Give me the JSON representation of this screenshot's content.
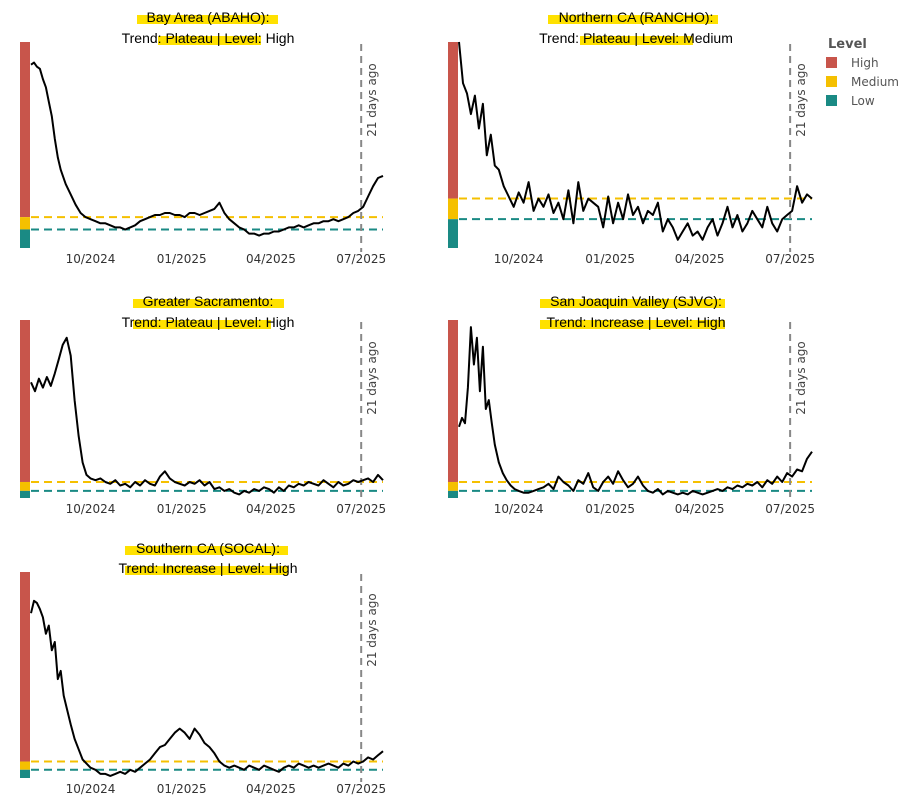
{
  "legend": {
    "title": "Level",
    "items": [
      {
        "label": "High",
        "color": "#c8554b"
      },
      {
        "label": "Medium",
        "color": "#f5c000"
      },
      {
        "label": "Low",
        "color": "#1a8a84"
      }
    ]
  },
  "highlight_color": "#ffe100",
  "medium_line_color": "#f5c000",
  "low_line_color": "#1a8a84",
  "marker_label": "21 days ago",
  "chart_data": [
    {
      "type": "line",
      "title_line1": "Bay Area (ABAHO):",
      "title_line2": "Trend: Plateau  | Level: High",
      "x_tick_labels": [
        "10/2024",
        "01/2025",
        "04/2025",
        "07/2025"
      ],
      "x_ticks_days": [
        60,
        152,
        242,
        333
      ],
      "x_range_days": [
        0,
        355
      ],
      "marker_day": 333,
      "y_range": [
        0,
        100
      ],
      "y_axis_bands": {
        "high": [
          15,
          100
        ],
        "medium": [
          9,
          15
        ],
        "low": [
          0,
          9
        ]
      },
      "medium_threshold": 15,
      "low_threshold": 9,
      "x": [
        0,
        3,
        6,
        9,
        12,
        15,
        18,
        21,
        24,
        27,
        30,
        35,
        40,
        45,
        50,
        55,
        60,
        65,
        70,
        75,
        80,
        85,
        90,
        95,
        100,
        105,
        110,
        115,
        120,
        125,
        130,
        135,
        140,
        145,
        150,
        155,
        160,
        165,
        170,
        175,
        180,
        185,
        190,
        195,
        200,
        205,
        210,
        215,
        220,
        225,
        230,
        235,
        240,
        245,
        250,
        255,
        260,
        265,
        270,
        275,
        280,
        285,
        290,
        295,
        300,
        305,
        310,
        315,
        320,
        325,
        330,
        335,
        340,
        345,
        350,
        355
      ],
      "y": [
        89,
        90,
        88,
        87,
        82,
        78,
        71,
        64,
        53,
        44,
        38,
        31,
        26,
        21,
        17,
        15,
        14,
        13,
        12,
        12,
        11,
        10,
        10,
        9,
        10,
        11,
        13,
        14,
        15,
        16,
        16,
        17,
        17,
        16,
        16,
        15,
        17,
        17,
        16,
        17,
        18,
        19,
        22,
        17,
        14,
        12,
        10,
        9,
        7,
        7,
        6,
        7,
        7,
        8,
        8,
        9,
        10,
        10,
        11,
        10,
        11,
        12,
        12,
        13,
        13,
        14,
        13,
        14,
        15,
        17,
        18,
        20,
        25,
        30,
        34,
        35
      ]
    },
    {
      "type": "line",
      "title_line1": "Northern CA (RANCHO):",
      "title_line2": "Trend: Plateau  | Level: Medium",
      "x_tick_labels": [
        "10/2024",
        "01/2025",
        "04/2025",
        "07/2025"
      ],
      "x_ticks_days": [
        60,
        152,
        242,
        333
      ],
      "x_range_days": [
        0,
        355
      ],
      "marker_day": 333,
      "y_range": [
        0,
        100
      ],
      "y_axis_bands": {
        "high": [
          24,
          100
        ],
        "medium": [
          14,
          24
        ],
        "low": [
          0,
          14
        ]
      },
      "medium_threshold": 24,
      "low_threshold": 14,
      "x": [
        0,
        4,
        8,
        12,
        16,
        20,
        24,
        28,
        32,
        36,
        40,
        45,
        50,
        55,
        60,
        65,
        70,
        75,
        80,
        85,
        90,
        95,
        100,
        105,
        110,
        115,
        120,
        125,
        130,
        135,
        140,
        145,
        150,
        155,
        160,
        165,
        170,
        175,
        180,
        185,
        190,
        195,
        200,
        205,
        210,
        215,
        220,
        225,
        230,
        235,
        240,
        245,
        250,
        255,
        260,
        265,
        270,
        275,
        280,
        285,
        290,
        295,
        300,
        305,
        310,
        315,
        320,
        325,
        330,
        335,
        340,
        345,
        350,
        355
      ],
      "y": [
        100,
        80,
        75,
        65,
        74,
        58,
        70,
        45,
        55,
        40,
        38,
        30,
        25,
        20,
        27,
        22,
        32,
        18,
        24,
        20,
        26,
        17,
        22,
        14,
        28,
        12,
        32,
        18,
        24,
        22,
        20,
        10,
        25,
        12,
        22,
        14,
        26,
        16,
        20,
        12,
        18,
        16,
        22,
        8,
        14,
        10,
        4,
        8,
        12,
        6,
        8,
        4,
        10,
        14,
        6,
        12,
        20,
        10,
        16,
        8,
        12,
        18,
        14,
        10,
        20,
        12,
        8,
        14,
        16,
        18,
        30,
        22,
        26,
        24
      ]
    },
    {
      "type": "line",
      "title_line1": "Greater Sacramento:",
      "title_line2": "Trend: Plateau  | Level: High",
      "x_tick_labels": [
        "10/2024",
        "01/2025",
        "04/2025",
        "07/2025"
      ],
      "x_ticks_days": [
        60,
        152,
        242,
        333
      ],
      "x_range_days": [
        0,
        355
      ],
      "marker_day": 333,
      "y_range": [
        0,
        100
      ],
      "y_axis_bands": {
        "high": [
          9,
          100
        ],
        "medium": [
          4,
          9
        ],
        "low": [
          0,
          4
        ]
      },
      "medium_threshold": 9,
      "low_threshold": 4,
      "x": [
        0,
        4,
        8,
        12,
        16,
        20,
        24,
        28,
        32,
        36,
        40,
        44,
        48,
        52,
        56,
        60,
        65,
        70,
        75,
        80,
        85,
        90,
        95,
        100,
        105,
        110,
        115,
        120,
        125,
        130,
        135,
        140,
        145,
        150,
        155,
        160,
        165,
        170,
        175,
        180,
        185,
        190,
        195,
        200,
        205,
        210,
        215,
        220,
        225,
        230,
        235,
        240,
        245,
        250,
        255,
        260,
        265,
        270,
        275,
        280,
        285,
        290,
        295,
        300,
        305,
        310,
        315,
        320,
        325,
        330,
        335,
        340,
        345,
        350,
        355
      ],
      "y": [
        65,
        60,
        67,
        62,
        68,
        63,
        70,
        78,
        86,
        90,
        80,
        55,
        35,
        20,
        13,
        11,
        10,
        11,
        9,
        8,
        10,
        7,
        8,
        6,
        9,
        7,
        10,
        8,
        7,
        12,
        15,
        11,
        9,
        8,
        7,
        9,
        8,
        10,
        7,
        9,
        5,
        6,
        4,
        5,
        3,
        2,
        4,
        3,
        5,
        4,
        6,
        5,
        3,
        6,
        4,
        7,
        6,
        8,
        7,
        9,
        8,
        7,
        10,
        8,
        6,
        9,
        7,
        8,
        10,
        9,
        10,
        11,
        9,
        13,
        10
      ]
    },
    {
      "type": "line",
      "title_line1": "San Joaquin Valley (SJVC):",
      "title_line2": "Trend: Increase  | Level: High",
      "x_tick_labels": [
        "10/2024",
        "01/2025",
        "04/2025",
        "07/2025"
      ],
      "x_ticks_days": [
        60,
        152,
        242,
        333
      ],
      "x_range_days": [
        0,
        355
      ],
      "marker_day": 333,
      "y_range": [
        0,
        100
      ],
      "y_axis_bands": {
        "high": [
          9,
          100
        ],
        "medium": [
          4,
          9
        ],
        "low": [
          0,
          4
        ]
      },
      "medium_threshold": 9,
      "low_threshold": 4,
      "x": [
        0,
        3,
        6,
        9,
        12,
        15,
        18,
        21,
        24,
        27,
        30,
        33,
        36,
        40,
        44,
        48,
        52,
        56,
        60,
        65,
        70,
        75,
        80,
        85,
        90,
        95,
        100,
        105,
        110,
        115,
        120,
        125,
        130,
        135,
        140,
        145,
        150,
        155,
        160,
        165,
        170,
        175,
        180,
        185,
        190,
        195,
        200,
        205,
        210,
        215,
        220,
        225,
        230,
        235,
        240,
        245,
        250,
        255,
        260,
        265,
        270,
        275,
        280,
        285,
        290,
        295,
        300,
        305,
        310,
        315,
        320,
        325,
        330,
        335,
        340,
        345,
        350,
        355
      ],
      "y": [
        40,
        45,
        42,
        62,
        96,
        75,
        90,
        60,
        85,
        50,
        55,
        42,
        30,
        20,
        14,
        10,
        7,
        5,
        4,
        3,
        3,
        4,
        5,
        6,
        8,
        5,
        12,
        9,
        7,
        4,
        10,
        8,
        14,
        6,
        4,
        9,
        12,
        8,
        15,
        10,
        6,
        8,
        12,
        7,
        4,
        3,
        5,
        2,
        4,
        3,
        2,
        3,
        2,
        4,
        3,
        2,
        3,
        4,
        5,
        4,
        6,
        5,
        7,
        6,
        8,
        7,
        9,
        6,
        10,
        8,
        12,
        9,
        14,
        12,
        16,
        15,
        22,
        26
      ]
    },
    {
      "type": "line",
      "title_line1": "Southern CA (SOCAL):",
      "title_line2": "Trend: Increase  | Level: High",
      "x_tick_labels": [
        "10/2024",
        "01/2025",
        "04/2025",
        "07/2025"
      ],
      "x_ticks_days": [
        60,
        152,
        242,
        333
      ],
      "x_range_days": [
        0,
        355
      ],
      "marker_day": 333,
      "y_range": [
        0,
        100
      ],
      "y_axis_bands": {
        "high": [
          8,
          100
        ],
        "medium": [
          4,
          8
        ],
        "low": [
          0,
          4
        ]
      },
      "medium_threshold": 8,
      "low_threshold": 4,
      "x": [
        0,
        3,
        6,
        9,
        12,
        15,
        18,
        21,
        24,
        27,
        30,
        33,
        36,
        40,
        44,
        48,
        52,
        56,
        60,
        65,
        70,
        75,
        80,
        85,
        90,
        95,
        100,
        105,
        110,
        115,
        120,
        125,
        130,
        135,
        140,
        145,
        150,
        155,
        160,
        165,
        170,
        175,
        180,
        185,
        190,
        195,
        200,
        205,
        210,
        215,
        220,
        225,
        230,
        235,
        240,
        245,
        250,
        255,
        260,
        265,
        270,
        275,
        280,
        285,
        290,
        295,
        300,
        305,
        310,
        315,
        320,
        325,
        330,
        335,
        340,
        345,
        350,
        355
      ],
      "y": [
        80,
        86,
        85,
        82,
        78,
        70,
        74,
        62,
        66,
        48,
        52,
        40,
        34,
        26,
        19,
        14,
        9,
        7,
        5,
        4,
        2,
        2,
        1,
        2,
        3,
        2,
        4,
        3,
        5,
        7,
        9,
        12,
        15,
        16,
        19,
        22,
        24,
        22,
        19,
        24,
        21,
        17,
        15,
        12,
        8,
        6,
        5,
        6,
        5,
        4,
        6,
        5,
        4,
        6,
        5,
        4,
        3,
        5,
        6,
        5,
        7,
        6,
        5,
        6,
        5,
        6,
        7,
        6,
        5,
        7,
        6,
        8,
        7,
        8,
        10,
        9,
        11,
        13
      ]
    }
  ]
}
